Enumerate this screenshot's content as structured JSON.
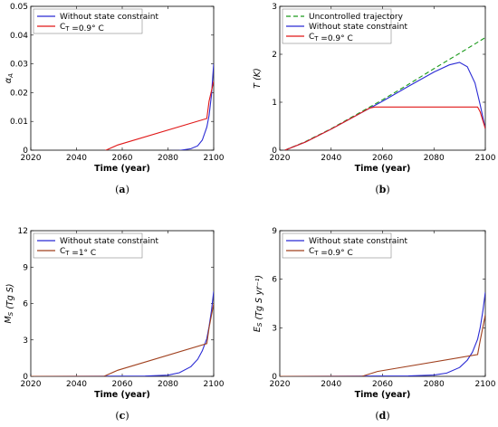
{
  "chart_data": [
    {
      "id": "a",
      "type": "line",
      "caption": "(a)",
      "xlabel": "Time (year)",
      "ylabel": "α_A",
      "xlim": [
        2020,
        2100
      ],
      "ylim": [
        0,
        0.05
      ],
      "xticks": [
        "2020",
        "2040",
        "2060",
        "2080",
        "2100"
      ],
      "yticks": [
        "0",
        "0.01",
        "0.02",
        "0.03",
        "0.04",
        "0.05"
      ],
      "legend_position": "top-left",
      "series": [
        {
          "name": "Without state constraint",
          "color": "#2b2bd4",
          "dash": "",
          "x": [
            2020,
            2050,
            2070,
            2085,
            2090,
            2093,
            2095,
            2097,
            2098,
            2099,
            2100
          ],
          "y": [
            -0.0003,
            -0.0003,
            -0.0003,
            -0.0001,
            0.0005,
            0.0015,
            0.0035,
            0.008,
            0.012,
            0.019,
            0.03
          ]
        },
        {
          "name": "C_T =0.9° C",
          "color": "#e01818",
          "dash": "",
          "x": [
            2020,
            2052,
            2058,
            2097,
            2098,
            2100
          ],
          "y": [
            -0.0003,
            -0.0003,
            0.0018,
            0.011,
            0.017,
            0.024
          ]
        }
      ]
    },
    {
      "id": "b",
      "type": "line",
      "caption": "(b)",
      "xlabel": "Time (year)",
      "ylabel": "T (K)",
      "xlim": [
        2020,
        2100
      ],
      "ylim": [
        0,
        3
      ],
      "xticks": [
        "2020",
        "2040",
        "2060",
        "2080",
        "2100"
      ],
      "yticks": [
        "0",
        "1",
        "2",
        "3"
      ],
      "legend_position": "top-left",
      "series": [
        {
          "name": "Uncontrolled trajectory",
          "color": "#1a9a1a",
          "dash": "5,3",
          "x": [
            2022,
            2030,
            2040,
            2050,
            2060,
            2070,
            2080,
            2090,
            2100
          ],
          "y": [
            0.0,
            0.18,
            0.45,
            0.75,
            1.05,
            1.37,
            1.7,
            2.02,
            2.35
          ]
        },
        {
          "name": "Without state constraint",
          "color": "#2b2bd4",
          "dash": "",
          "x": [
            2022,
            2030,
            2040,
            2050,
            2060,
            2070,
            2080,
            2086,
            2090,
            2093,
            2096,
            2098,
            2100
          ],
          "y": [
            0.0,
            0.17,
            0.44,
            0.73,
            1.02,
            1.33,
            1.63,
            1.78,
            1.83,
            1.74,
            1.4,
            0.95,
            0.45
          ]
        },
        {
          "name": "C_T =0.9° C",
          "color": "#e01818",
          "dash": "",
          "x": [
            2022,
            2030,
            2040,
            2050,
            2055,
            2057,
            2097,
            2098,
            2100
          ],
          "y": [
            0.0,
            0.17,
            0.44,
            0.73,
            0.88,
            0.9,
            0.9,
            0.8,
            0.45
          ]
        }
      ]
    },
    {
      "id": "c",
      "type": "line",
      "caption": "(c)",
      "xlabel": "Time (year)",
      "ylabel": "M_S (Tg S)",
      "xlim": [
        2020,
        2100
      ],
      "ylim": [
        0,
        12
      ],
      "xticks": [
        "2020",
        "2040",
        "2060",
        "2080",
        "2100"
      ],
      "yticks": [
        "0",
        "3",
        "6",
        "9",
        "12"
      ],
      "legend_position": "top-left",
      "series": [
        {
          "name": "Without state constraint",
          "color": "#2b2bd4",
          "dash": "",
          "x": [
            2020,
            2070,
            2080,
            2085,
            2090,
            2093,
            2095,
            2097,
            2098,
            2099,
            2100
          ],
          "y": [
            0.0,
            0.02,
            0.1,
            0.3,
            0.8,
            1.4,
            2.1,
            3.1,
            4.1,
            5.4,
            7.0
          ]
        },
        {
          "name": "C_T =1° C",
          "color": "#a0401e",
          "dash": "",
          "x": [
            2020,
            2052,
            2058,
            2097,
            2098,
            2100
          ],
          "y": [
            0.0,
            0.0,
            0.5,
            2.7,
            4.0,
            6.0
          ]
        }
      ]
    },
    {
      "id": "d",
      "type": "line",
      "caption": "(d)",
      "xlabel": "Time (year)",
      "ylabel": "E_S (Tg S yr⁻¹)",
      "xlim": [
        2020,
        2100
      ],
      "ylim": [
        0,
        9
      ],
      "xticks": [
        "2020",
        "2040",
        "2060",
        "2080",
        "2100"
      ],
      "yticks": [
        "0",
        "3",
        "6",
        "9"
      ],
      "legend_position": "top-left",
      "series": [
        {
          "name": "Without state constraint",
          "color": "#2b2bd4",
          "dash": "",
          "x": [
            2020,
            2070,
            2080,
            2085,
            2090,
            2093,
            2095,
            2097,
            2098,
            2099,
            2100
          ],
          "y": [
            0.0,
            0.02,
            0.08,
            0.2,
            0.55,
            1.0,
            1.5,
            2.3,
            3.0,
            4.0,
            5.2
          ]
        },
        {
          "name": "C_T =0.9° C",
          "color": "#a0401e",
          "dash": "",
          "x": [
            2020,
            2052,
            2058,
            2097,
            2098,
            2100
          ],
          "y": [
            0.0,
            0.0,
            0.3,
            1.35,
            2.2,
            3.8
          ]
        }
      ]
    }
  ]
}
